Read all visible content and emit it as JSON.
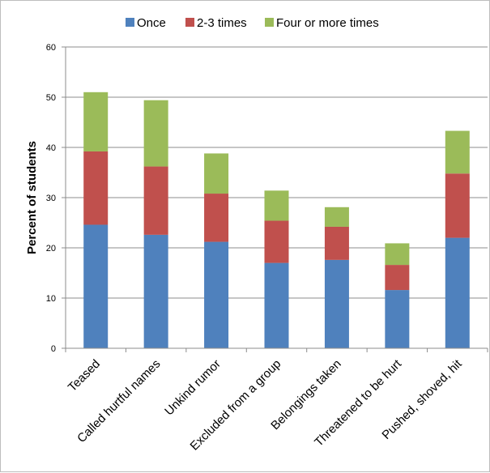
{
  "chart_data": {
    "type": "bar",
    "stacked": true,
    "title": "",
    "xlabel": "",
    "ylabel": "Percent of students",
    "ylim": [
      0,
      60
    ],
    "yticks": [
      "0",
      "10",
      "20",
      "30",
      "40",
      "50",
      "60"
    ],
    "grid": true,
    "legend_position": "top",
    "categories": [
      "Teased",
      "Called hurtful names",
      "Unkind rumor",
      "Excluded from a group",
      "Belongings taken",
      "Threatened to be hurt",
      "Pushed, shoved, hit"
    ],
    "series": [
      {
        "name": "Once",
        "color": "#4f81bd",
        "values": [
          24.6,
          22.6,
          21.2,
          17.0,
          17.6,
          11.6,
          22.0
        ]
      },
      {
        "name": "2-3 times",
        "color": "#c0504d",
        "values": [
          14.6,
          13.6,
          9.6,
          8.4,
          6.6,
          5.0,
          12.8
        ]
      },
      {
        "name": "Four or more times",
        "color": "#9bbb59",
        "values": [
          11.8,
          13.2,
          8.0,
          6.0,
          3.9,
          4.3,
          8.5
        ]
      }
    ]
  }
}
